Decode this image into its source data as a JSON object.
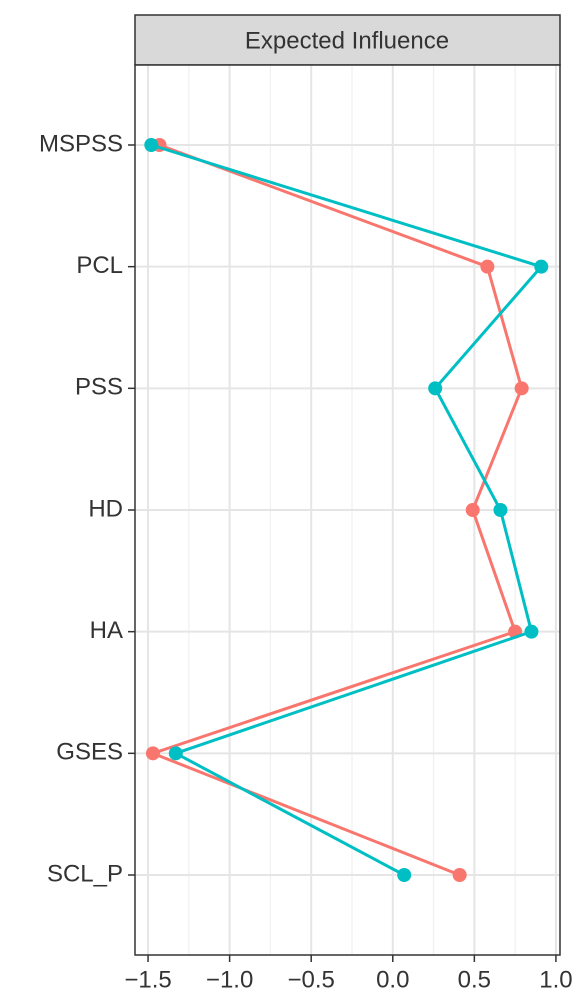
{
  "chart_data": {
    "type": "dotline",
    "title": "Expected Influence",
    "categories": [
      "MSPSS",
      "PCL",
      "PSS",
      "HD",
      "HA",
      "GSES",
      "SCL_P"
    ],
    "series": [
      {
        "color": "#f8766d",
        "values": [
          -1.43,
          0.58,
          0.79,
          0.49,
          0.75,
          -1.47,
          0.41
        ]
      },
      {
        "color": "#00bfc4",
        "values": [
          -1.48,
          0.91,
          0.26,
          0.66,
          0.85,
          -1.33,
          0.07
        ]
      }
    ],
    "xlim": [
      -1.58,
      1.025
    ],
    "xticks": [
      {
        "value": -1.5,
        "label": "−1.5"
      },
      {
        "value": -1,
        "label": "−1.0"
      },
      {
        "value": -0.5,
        "label": "−0.5"
      },
      {
        "value": 0,
        "label": "0.0"
      },
      0.5,
      {
        "value": 1,
        "label": "1.0"
      }
    ],
    "x_minor_grid": [
      -1.25,
      -0.75,
      -0.25,
      0.25,
      0.75
    ],
    "grid": true
  }
}
